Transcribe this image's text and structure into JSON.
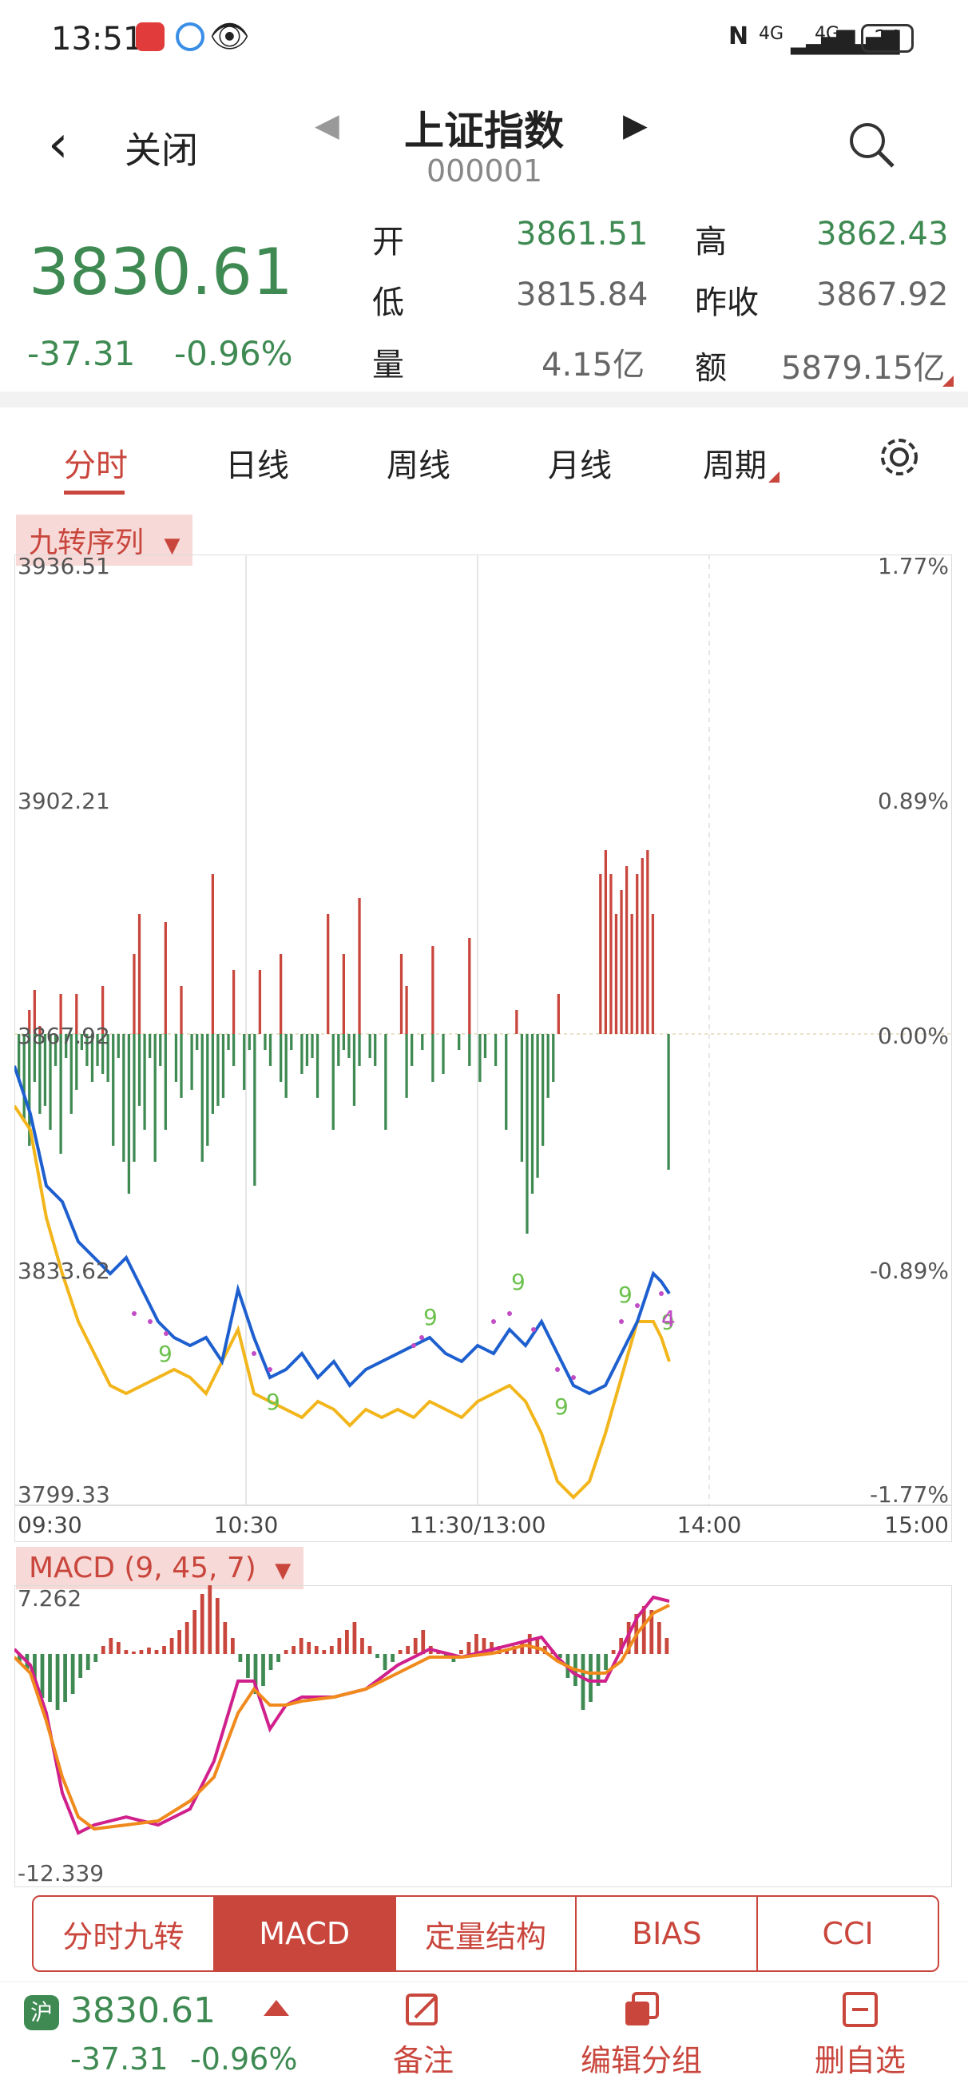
{
  "status": {
    "time": "13:51",
    "signal1": "4G",
    "signal2": "4G",
    "battery": "24"
  },
  "nav": {
    "back_label": "关闭",
    "title": "上证指数",
    "code": "000001"
  },
  "quote": {
    "price": "3830.61",
    "change": "-37.31",
    "change_pct": "-0.96%",
    "open_label": "开",
    "open": "3861.51",
    "high_label": "高",
    "high": "3862.43",
    "low_label": "低",
    "low": "3815.84",
    "prev_label": "昨收",
    "prev": "3867.92",
    "vol_label": "量",
    "vol": "4.15亿",
    "amt_label": "额",
    "amt": "5879.15亿"
  },
  "tabs": [
    "分时",
    "日线",
    "周线",
    "月线",
    "周期"
  ],
  "indicator_label": "九转序列",
  "price_chart": {
    "y_labels_left": [
      "3936.51",
      "3902.21",
      "3867.92",
      "3833.62",
      "3799.33"
    ],
    "y_labels_right": [
      "1.77%",
      "0.89%",
      "0.00%",
      "-0.89%",
      "-1.77%"
    ],
    "x_labels": [
      "09:30",
      "10:30",
      "11:30/13:00",
      "14:00",
      "15:00"
    ],
    "nine_marks": [
      "9",
      "9",
      "9",
      "9",
      "9",
      "9",
      "9",
      "4"
    ]
  },
  "macd": {
    "label": "MACD (9, 45, 7)",
    "max": "7.262",
    "min": "-12.339"
  },
  "buttons": [
    "分时九转",
    "MACD",
    "定量结构",
    "BIAS",
    "CCI"
  ],
  "bottom": {
    "market": "沪",
    "price": "3830.61",
    "change": "-37.31",
    "change_pct": "-0.96%",
    "note": "备注",
    "edit_group": "编辑分组",
    "delete": "删自选"
  },
  "colors": {
    "accent": "#c9463d",
    "up": "#c9463d",
    "down": "#3e8a52",
    "line_blue": "#1e5fcf",
    "line_yellow": "#f2b61c"
  }
}
